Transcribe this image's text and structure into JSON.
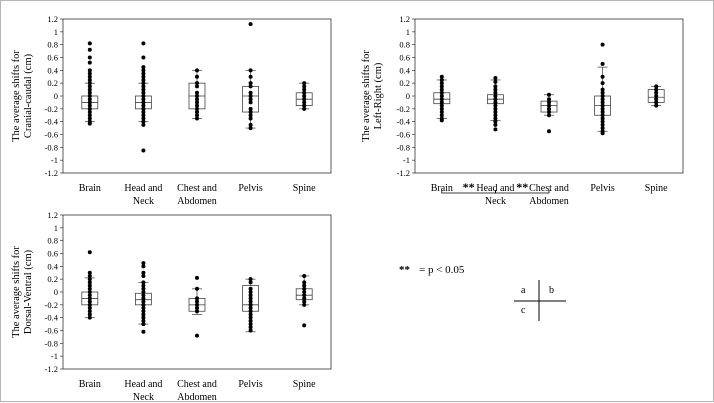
{
  "chart_data": [
    {
      "type": "boxplot",
      "id": "a",
      "ylabel_lines": [
        "The average shifts for",
        "Cranial-caudal (cm)"
      ],
      "categories": [
        "Brain",
        "Head and\nNeck",
        "Chest and\nAbdomen",
        "Pelvis",
        "Spine"
      ],
      "ylim": [
        -1.2,
        1.2
      ],
      "yticks": [
        "1.2",
        "1",
        "0.8",
        "0.6",
        "0.4",
        "0.2",
        "0",
        "-0.2",
        "-0.4",
        "-0.6",
        "-0.8",
        "-1",
        "-1.2"
      ],
      "grid": false,
      "boxes": [
        {
          "category": "Brain",
          "q1": -0.2,
          "median": -0.1,
          "q3": 0.0,
          "whisker_low": -0.4,
          "whisker_high": 0.2,
          "points": [
            0.82,
            0.72,
            0.6,
            0.52,
            0.4,
            0.35,
            0.3,
            0.25,
            0.2,
            0.15,
            0.1,
            0.05,
            0,
            -0.05,
            -0.1,
            -0.15,
            -0.2,
            -0.25,
            -0.3,
            -0.35,
            -0.4,
            -0.43
          ]
        },
        {
          "category": "Head and Neck",
          "q1": -0.2,
          "median": -0.1,
          "q3": 0.0,
          "whisker_low": -0.4,
          "whisker_high": 0.2,
          "points": [
            0.82,
            0.6,
            0.45,
            0.4,
            0.35,
            0.3,
            0.25,
            0.2,
            0.15,
            0.1,
            0.05,
            0,
            -0.05,
            -0.1,
            -0.15,
            -0.2,
            -0.25,
            -0.3,
            -0.35,
            -0.4,
            -0.45,
            -0.85
          ]
        },
        {
          "category": "Chest and Abdomen",
          "q1": -0.2,
          "median": 0.0,
          "q3": 0.2,
          "whisker_low": -0.35,
          "whisker_high": 0.4,
          "points": [
            0.4,
            0.3,
            0.2,
            0.15,
            0.05,
            0,
            -0.05,
            -0.1,
            -0.15,
            -0.2,
            -0.25,
            -0.3,
            -0.35
          ]
        },
        {
          "category": "Pelvis",
          "q1": -0.25,
          "median": 0.0,
          "q3": 0.15,
          "whisker_low": -0.5,
          "whisker_high": 0.4,
          "points": [
            1.12,
            0.4,
            0.3,
            0.2,
            0.15,
            0.05,
            0,
            -0.05,
            -0.1,
            -0.2,
            -0.25,
            -0.3,
            -0.35,
            -0.45,
            -0.5
          ]
        },
        {
          "category": "Spine",
          "q1": -0.15,
          "median": -0.05,
          "q3": 0.05,
          "whisker_low": -0.2,
          "whisker_high": 0.2,
          "points": [
            0.2,
            0.15,
            0.1,
            0.05,
            0,
            -0.05,
            -0.1,
            -0.15,
            -0.2
          ]
        }
      ]
    },
    {
      "type": "boxplot",
      "id": "b",
      "ylabel_lines": [
        "The average shifts for",
        "Left-Right (cm)"
      ],
      "categories": [
        "Brain",
        "Head and\nNeck",
        "Chest and\nAbdomen",
        "Pelvis",
        "Spine"
      ],
      "ylim": [
        -1.2,
        1.2
      ],
      "yticks": [
        "1.2",
        "1",
        "0.8",
        "0.6",
        "0.4",
        "0.2",
        "0",
        "-0.2",
        "-0.4",
        "-0.6",
        "-0.8",
        "-1",
        "-1.2"
      ],
      "grid": false,
      "significance": [
        {
          "from": "Brain",
          "to": "Head and Neck",
          "label": "**"
        },
        {
          "from": "Head and Neck",
          "to": "Chest and Abdomen",
          "label": "**"
        }
      ],
      "boxes": [
        {
          "category": "Brain",
          "q1": -0.12,
          "median": -0.05,
          "q3": 0.05,
          "whisker_low": -0.35,
          "whisker_high": 0.25,
          "points": [
            0.3,
            0.25,
            0.2,
            0.15,
            0.1,
            0.05,
            0,
            -0.05,
            -0.1,
            -0.15,
            -0.2,
            -0.25,
            -0.3,
            -0.35,
            -0.38
          ]
        },
        {
          "category": "Head and Neck",
          "q1": -0.12,
          "median": -0.05,
          "q3": 0.02,
          "whisker_low": -0.38,
          "whisker_high": 0.25,
          "points": [
            0.28,
            0.22,
            0.15,
            0.1,
            0.05,
            0,
            -0.05,
            -0.1,
            -0.15,
            -0.2,
            -0.25,
            -0.3,
            -0.35,
            -0.4,
            -0.45,
            -0.52
          ]
        },
        {
          "category": "Chest and Abdomen",
          "q1": -0.25,
          "median": -0.15,
          "q3": -0.08,
          "whisker_low": -0.3,
          "whisker_high": 0.02,
          "points": [
            0.02,
            -0.05,
            -0.1,
            -0.15,
            -0.2,
            -0.25,
            -0.3,
            -0.55
          ]
        },
        {
          "category": "Pelvis",
          "q1": -0.3,
          "median": -0.15,
          "q3": 0.0,
          "whisker_low": -0.55,
          "whisker_high": 0.45,
          "points": [
            0.8,
            0.5,
            0.3,
            0.2,
            0.1,
            0.05,
            0,
            -0.05,
            -0.1,
            -0.15,
            -0.2,
            -0.25,
            -0.3,
            -0.35,
            -0.4,
            -0.45,
            -0.5,
            -0.55,
            -0.58
          ]
        },
        {
          "category": "Spine",
          "q1": -0.1,
          "median": -0.02,
          "q3": 0.1,
          "whisker_low": -0.15,
          "whisker_high": 0.15,
          "points": [
            0.15,
            0.1,
            0.05,
            0,
            -0.05,
            -0.1,
            -0.15
          ]
        }
      ]
    },
    {
      "type": "boxplot",
      "id": "c",
      "ylabel_lines": [
        "The average shifts  for",
        "Dorsal-Ventral (cm)"
      ],
      "categories": [
        "Brain",
        "Head and\nNeck",
        "Chest and\nAbdomen",
        "Pelvis",
        "Spine"
      ],
      "ylim": [
        -1.2,
        1.2
      ],
      "yticks": [
        "1.2",
        "1",
        "0.8",
        "0.6",
        "0.4",
        "0.2",
        "0",
        "-0.2",
        "-0.4",
        "-0.6",
        "-0.8",
        "-1",
        "-1.2"
      ],
      "grid": false,
      "boxes": [
        {
          "category": "Brain",
          "q1": -0.2,
          "median": -0.1,
          "q3": 0.0,
          "whisker_low": -0.4,
          "whisker_high": 0.22,
          "points": [
            0.62,
            0.3,
            0.25,
            0.2,
            0.15,
            0.1,
            0.05,
            0,
            -0.05,
            -0.1,
            -0.15,
            -0.2,
            -0.25,
            -0.3,
            -0.35,
            -0.4
          ]
        },
        {
          "category": "Head and Neck",
          "q1": -0.2,
          "median": -0.12,
          "q3": -0.02,
          "whisker_low": -0.5,
          "whisker_high": 0.15,
          "points": [
            0.45,
            0.4,
            0.3,
            0.25,
            0.15,
            0.1,
            0.05,
            0,
            -0.05,
            -0.1,
            -0.15,
            -0.2,
            -0.25,
            -0.3,
            -0.35,
            -0.4,
            -0.45,
            -0.5,
            -0.62
          ]
        },
        {
          "category": "Chest and Abdomen",
          "q1": -0.3,
          "median": -0.2,
          "q3": -0.1,
          "whisker_low": -0.35,
          "whisker_high": 0.05,
          "points": [
            0.22,
            0.05,
            -0.1,
            -0.15,
            -0.2,
            -0.25,
            -0.3,
            -0.68
          ]
        },
        {
          "category": "Pelvis",
          "q1": -0.3,
          "median": -0.2,
          "q3": 0.1,
          "whisker_low": -0.62,
          "whisker_high": 0.2,
          "points": [
            0.2,
            0.15,
            0.05,
            0,
            -0.05,
            -0.1,
            -0.15,
            -0.2,
            -0.25,
            -0.3,
            -0.35,
            -0.4,
            -0.45,
            -0.5,
            -0.55,
            -0.6
          ]
        },
        {
          "category": "Spine",
          "q1": -0.12,
          "median": -0.05,
          "q3": 0.05,
          "whisker_low": -0.2,
          "whisker_high": 0.25,
          "points": [
            0.25,
            0.15,
            0.1,
            0.05,
            0,
            -0.05,
            -0.1,
            -0.15,
            -0.2,
            -0.52
          ]
        }
      ]
    }
  ],
  "legend": {
    "significance_symbol": "**",
    "significance_text": "= p < 0.05"
  },
  "panel_key": {
    "a": "a",
    "b": "b",
    "c": "c"
  }
}
